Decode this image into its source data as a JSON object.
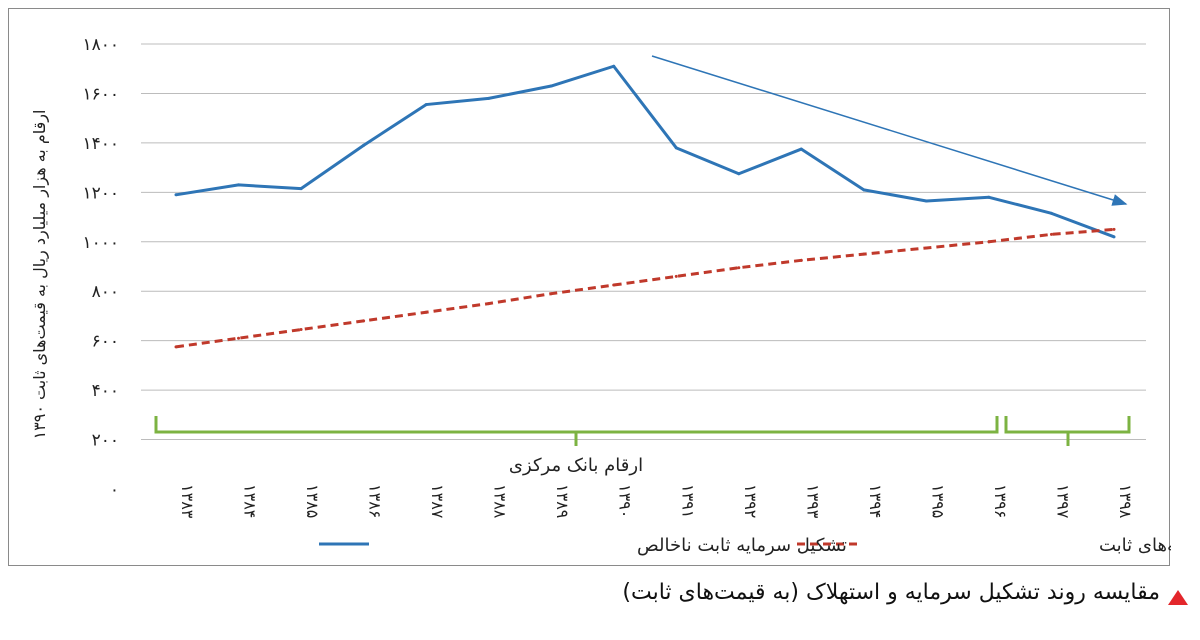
{
  "chart_data": {
    "type": "line",
    "ylabel": "ارقام به هزار میلیارد ریال به قیمت‌های ثابت ۱۳۹۰",
    "ylim": [
      0,
      1800
    ],
    "yticks": [
      "۰",
      "۲۰۰",
      "۴۰۰",
      "۶۰۰",
      "۸۰۰",
      "۱۰۰۰",
      "۱۲۰۰",
      "۱۴۰۰",
      "۱۶۰۰",
      "۱۸۰۰"
    ],
    "categories": [
      "۱۳۸۳",
      "۱۳۸۴",
      "۱۳۸۵",
      "۱۳۸۶",
      "۱۳۸۷",
      "۱۳۸۸",
      "۱۳۸۹",
      "۱۳۹۰",
      "۱۳۹۱",
      "۱۳۹۲",
      "۱۳۹۳",
      "۱۳۹۴",
      "۱۳۹۵",
      "۱۳۹۶",
      "۱۳۹۷",
      "۱۳۹۸"
    ],
    "grid": true,
    "legend_position": "bottom",
    "series": [
      {
        "name": "تشکیل سرمایه ثابت ناخالص",
        "color": "#2e75b6",
        "style": "solid",
        "values": [
          1190,
          1230,
          1215,
          1390,
          1555,
          1580,
          1630,
          1710,
          1380,
          1275,
          1375,
          1210,
          1165,
          1180,
          1115,
          1020
        ]
      },
      {
        "name": "استهلاک سرمایه‌های ثابت",
        "color": "#c0392b",
        "style": "dashed",
        "values": [
          575,
          610,
          645,
          680,
          715,
          750,
          790,
          825,
          860,
          895,
          925,
          950,
          975,
          1000,
          1030,
          1050
        ]
      }
    ],
    "annotations": {
      "bracket_label": "ارقام بانک مرکزی",
      "bracket_color": "#7cb342",
      "trend_arrow_color": "#2e75b6"
    }
  },
  "caption": {
    "text": "مقایسه روند تشکیل سرمایه و استهلاک (به قیمت‌های ثابت)",
    "icon": "red-triangle-icon",
    "icon_color": "#e3262b"
  }
}
